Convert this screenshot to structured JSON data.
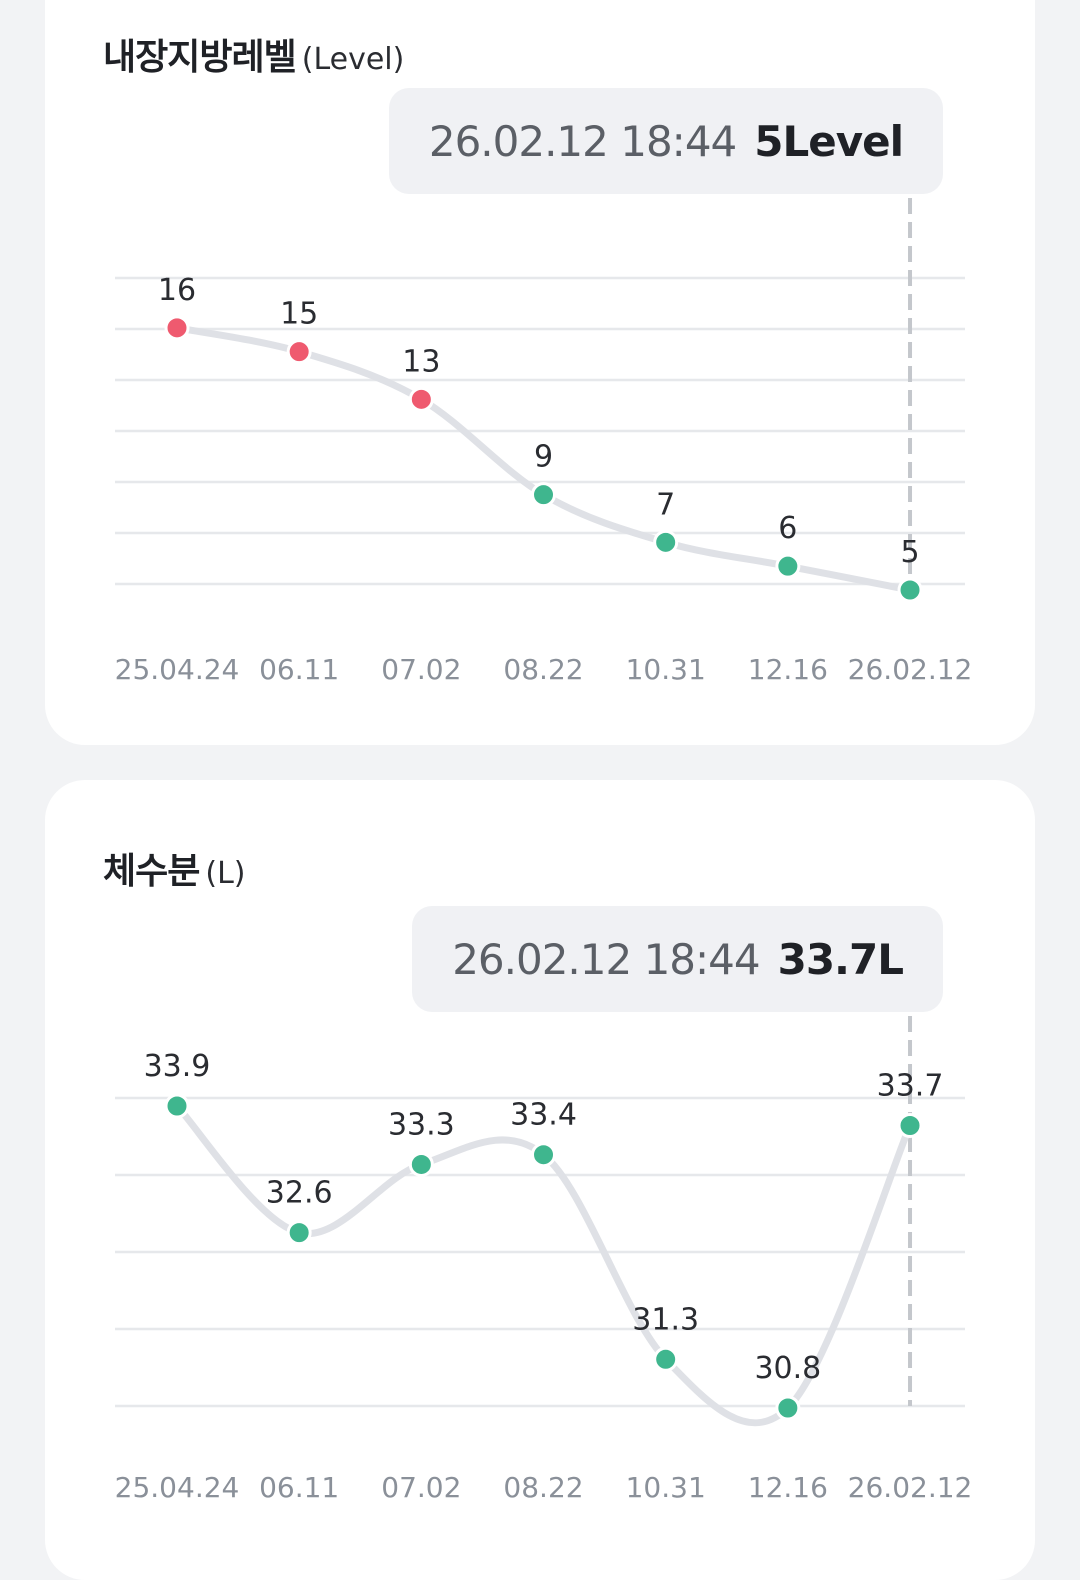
{
  "charts": [
    {
      "title": "내장지방레벨",
      "unit": "(Level)",
      "tooltip": {
        "datetime": "26.02.12 18:44",
        "value": "5Level"
      },
      "colors": {
        "high": "#ef5a6f",
        "normal": "#3fb68e",
        "line": "#dfe1e6",
        "grid": "#e6e8eb",
        "axis_text": "#8a9099",
        "label_text": "#2a2c31"
      }
    },
    {
      "title": "체수분",
      "unit": "(L)",
      "tooltip": {
        "datetime": "26.02.12 18:44",
        "value": "33.7L"
      },
      "colors": {
        "normal": "#3fb68e",
        "line": "#dfe1e6",
        "grid": "#e6e8eb",
        "axis_text": "#8a9099",
        "label_text": "#2a2c31"
      }
    }
  ],
  "chart_data": [
    {
      "type": "line",
      "title": "내장지방레벨",
      "ylabel": "(Level)",
      "categories": [
        "25.04.24",
        "06.11",
        "07.02",
        "08.22",
        "10.31",
        "12.16",
        "26.02.12"
      ],
      "values": [
        16,
        15,
        13,
        9,
        7,
        6,
        5
      ],
      "point_status": [
        "high",
        "high",
        "high",
        "normal",
        "normal",
        "normal",
        "normal"
      ],
      "ylim": [
        5,
        17
      ],
      "grid": true,
      "selected_index": 6
    },
    {
      "type": "line",
      "title": "체수분",
      "ylabel": "(L)",
      "categories": [
        "25.04.24",
        "06.11",
        "07.02",
        "08.22",
        "10.31",
        "12.16",
        "26.02.12"
      ],
      "values": [
        33.9,
        32.6,
        33.3,
        33.4,
        31.3,
        30.8,
        33.7
      ],
      "point_status": [
        "normal",
        "normal",
        "normal",
        "normal",
        "normal",
        "normal",
        "normal"
      ],
      "ylim": [
        30.8,
        33.9
      ],
      "grid": true,
      "selected_index": 6
    }
  ]
}
